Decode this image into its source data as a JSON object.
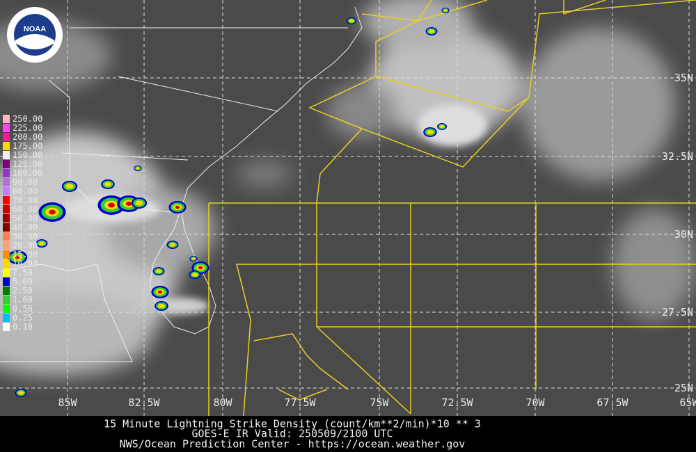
{
  "logo": {
    "text": "NOAA"
  },
  "map": {
    "lon_labels": [
      "85W",
      "82.5W",
      "80W",
      "77.5W",
      "75W",
      "72.5W",
      "70W",
      "67.5W",
      "65W"
    ],
    "lat_labels": [
      "35N",
      "32.5N",
      "30N",
      "27.5N",
      "25N"
    ]
  },
  "legend": {
    "values": [
      "250.00",
      "225.00",
      "200.00",
      "175.00",
      "150.00",
      "125.00",
      "100.00",
      "90.00",
      "80.00",
      "70.00",
      "60.00",
      "50.00",
      "40.00",
      "30.00",
      "20.00",
      "15.00",
      "10.00",
      "7.50",
      "5.00",
      "2.50",
      "1.00",
      "0.50",
      "0.25",
      "0.10"
    ]
  },
  "caption": {
    "line1": "15 Minute Lightning Strike Density (count/km**2/min)*10 ** 3",
    "line2": "GOES-E IR   Valid: 250509/2100 UTC",
    "line3": "NWS/Ocean Prediction Center - https://ocean.weather.gov"
  }
}
